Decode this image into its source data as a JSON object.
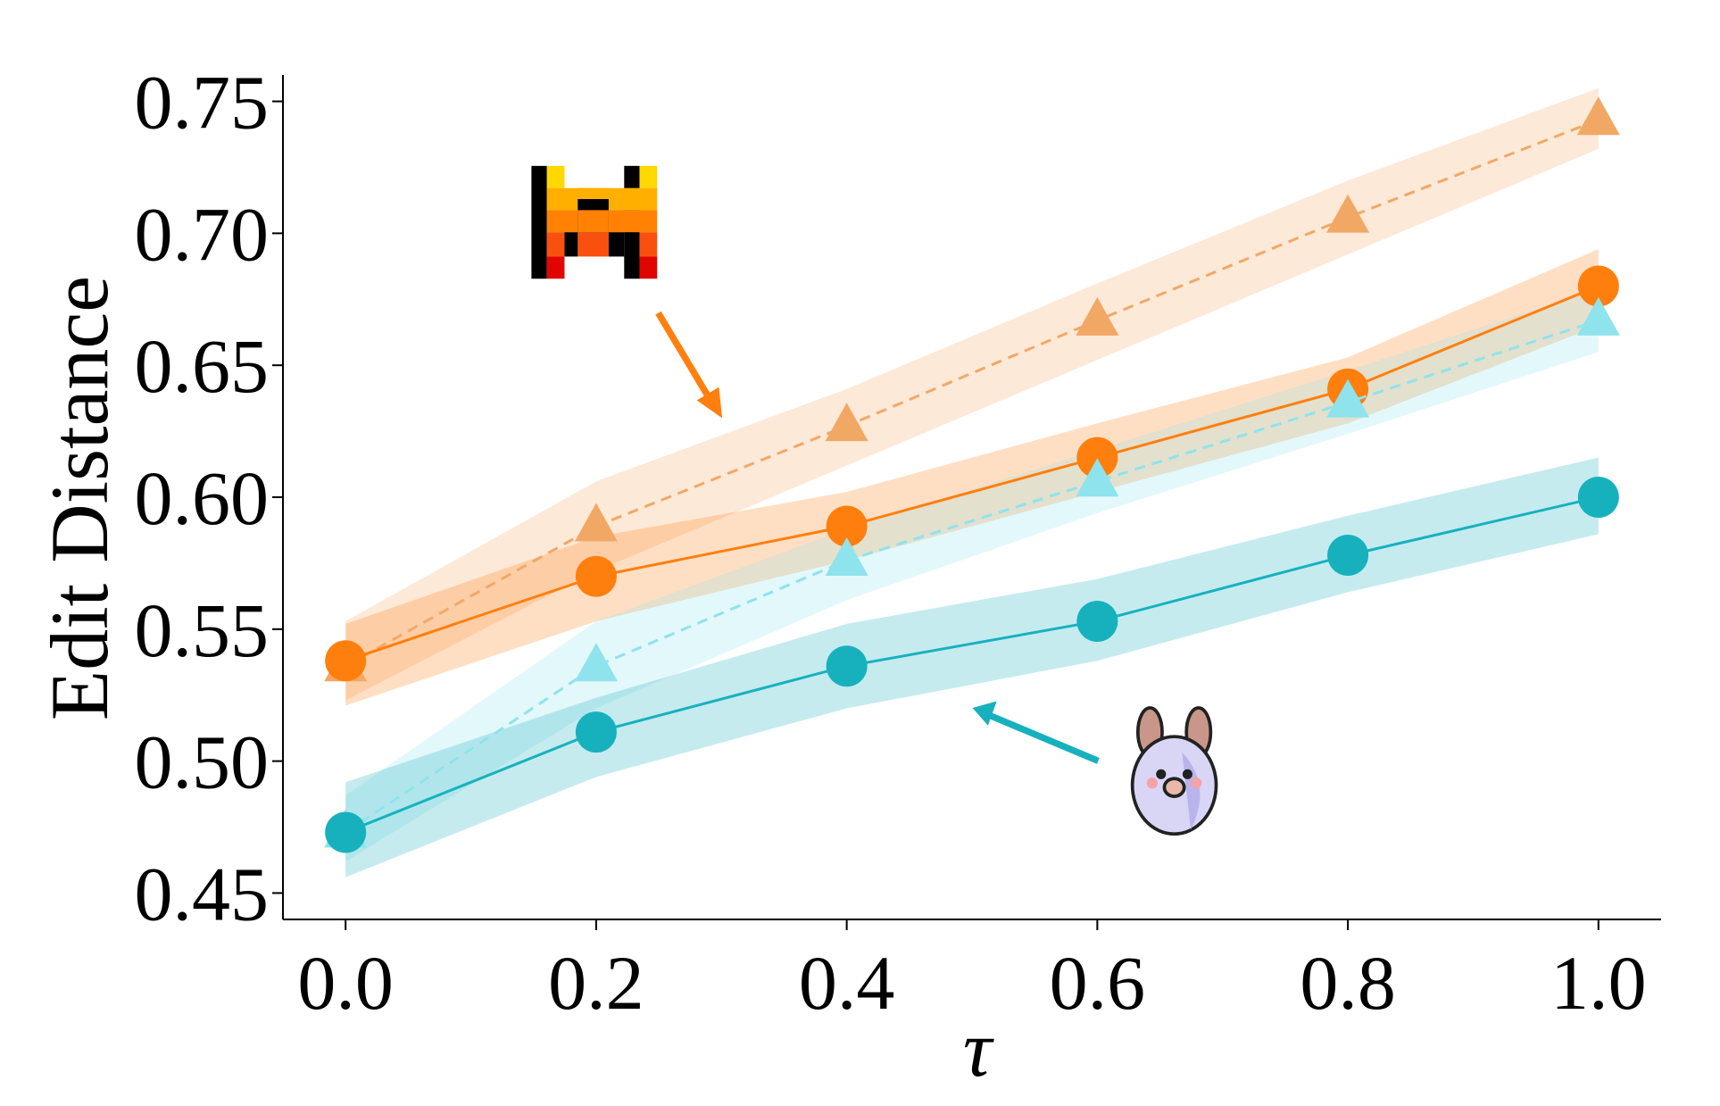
{
  "chart_data": {
    "type": "line",
    "xlabel": "τ",
    "ylabel": "Edit Distance",
    "x": [
      0.0,
      0.2,
      0.4,
      0.6,
      0.8,
      1.0
    ],
    "xlim": [
      -0.05,
      1.05
    ],
    "xticks": [
      {
        "value": 0,
        "label": "0.0"
      },
      0.2,
      0.4,
      0.6,
      0.8,
      {
        "value": 1,
        "label": "1.0"
      }
    ],
    "ylim": [
      0.44,
      0.76
    ],
    "yticks": [
      0.45,
      {
        "value": 0.5,
        "label": "0.50"
      },
      0.55,
      {
        "value": 0.6,
        "label": "0.60"
      },
      0.65,
      {
        "value": 0.7,
        "label": "0.70"
      },
      0.75
    ],
    "series": [
      {
        "color": "#f2a865",
        "marker": "triangle",
        "linestyle": "dashed",
        "values": [
          0.536,
          0.589,
          0.627,
          0.667,
          0.706,
          0.743
        ],
        "lower": [
          0.523,
          0.572,
          0.612,
          0.652,
          0.692,
          0.732
        ],
        "upper": [
          0.553,
          0.606,
          0.641,
          0.681,
          0.72,
          0.755
        ]
      },
      {
        "color": "#ff7f0e",
        "marker": "circle",
        "linestyle": "solid",
        "values": [
          0.538,
          0.57,
          0.589,
          0.615,
          0.641,
          0.68
        ],
        "lower": [
          0.521,
          0.553,
          0.576,
          0.602,
          0.628,
          0.665
        ],
        "upper": [
          0.552,
          0.585,
          0.602,
          0.628,
          0.653,
          0.694
        ]
      },
      {
        "color": "#8fe3ec",
        "marker": "triangle",
        "linestyle": "dashed",
        "values": [
          0.473,
          0.536,
          0.576,
          0.606,
          0.636,
          0.667
        ],
        "lower": [
          0.462,
          0.52,
          0.561,
          0.594,
          0.624,
          0.655
        ],
        "upper": [
          0.487,
          0.553,
          0.588,
          0.618,
          0.648,
          0.679
        ]
      },
      {
        "color": "#17b1be",
        "marker": "circle",
        "linestyle": "solid",
        "values": [
          0.473,
          0.511,
          0.536,
          0.553,
          0.578,
          0.6
        ],
        "lower": [
          0.456,
          0.494,
          0.52,
          0.538,
          0.564,
          0.586
        ],
        "upper": [
          0.492,
          0.524,
          0.552,
          0.569,
          0.593,
          0.615
        ]
      }
    ]
  }
}
